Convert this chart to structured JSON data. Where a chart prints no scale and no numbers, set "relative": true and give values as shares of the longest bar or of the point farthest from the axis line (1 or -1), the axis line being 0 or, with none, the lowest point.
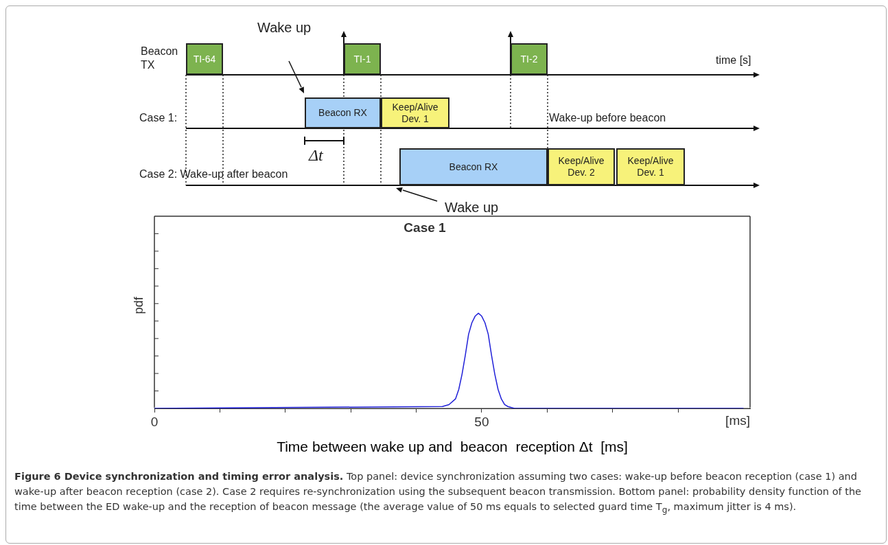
{
  "chart_data": [
    {
      "type": "other",
      "annotations": [
        "Beacon TX",
        "time [s]",
        "TI-64",
        "TI-1",
        "TI-2",
        "Wake up",
        "Case 1:",
        "Beacon RX",
        "Keep/Alive Dev. 1",
        "Wake-up before beacon",
        "Δt",
        "Case 2: Wake-up after beacon",
        "Beacon RX",
        "Keep/Alive Dev. 2",
        "Keep/Alive Dev. 1",
        "Wake up"
      ]
    },
    {
      "type": "line",
      "title": "Case 1",
      "xlabel": "Time between wake up and  beacon  reception Δt  [ms]",
      "ylabel": "pdf",
      "relative": true,
      "x": [
        0,
        44,
        45,
        46,
        46.5,
        47,
        47.5,
        48,
        48.5,
        49,
        49.5,
        50,
        50.5,
        51,
        51.5,
        52,
        52.5,
        53,
        53.5,
        54,
        55,
        90
      ],
      "series": [
        {
          "color": "#2020d8",
          "values": [
            0,
            0.02,
            0.04,
            0.1,
            0.2,
            0.36,
            0.56,
            0.78,
            0.9,
            0.97,
            1,
            0.97,
            0.9,
            0.78,
            0.56,
            0.36,
            0.2,
            0.1,
            0.04,
            0.02,
            0,
            0
          ]
        }
      ],
      "xlim": [
        0,
        91
      ],
      "xticks": [
        0,
        {
          "value": 10,
          "label": null
        },
        {
          "value": 20,
          "label": null
        },
        {
          "value": 30,
          "label": null
        },
        {
          "value": 40,
          "label": null
        },
        50,
        {
          "value": 60,
          "label": null
        },
        {
          "value": 70,
          "label": null
        },
        {
          "value": 80,
          "label": null
        }
      ],
      "annotations": [
        "[ms]",
        "Figure 6 Device synchronization and timing error analysis.",
        "Top panel: device synchronization assuming two cases: wake-up before beacon reception (case 1) and wake-up after beacon reception (case 2). Case 2 requires re-synchronization using the subsequent beacon transmission. Bottom panel: probability density function of the time between the ED wake-up and the reception of beacon message (the average value of 50 ms equals to selected guard time T$_{g}$, maximum jitter is 4 ms)."
      ]
    }
  ]
}
